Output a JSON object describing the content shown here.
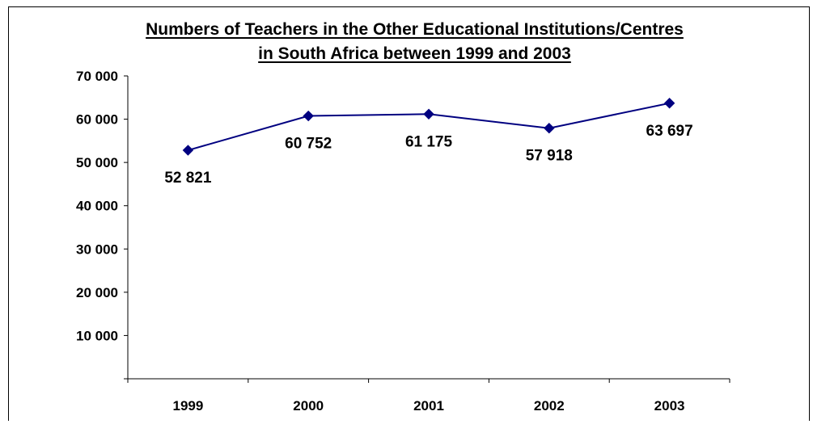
{
  "chart_data": {
    "type": "line",
    "title_line1": "Numbers of Teachers in the Other Educational Institutions/Centres",
    "title_line2": "in South Africa between 1999 and 2003",
    "xlabel": "",
    "ylabel": "",
    "categories": [
      "1999",
      "2000",
      "2001",
      "2002",
      "2003"
    ],
    "series": [
      {
        "values": [
          52821,
          60752,
          61175,
          57918,
          63697
        ]
      }
    ],
    "data_labels": [
      "52 821",
      "60 752",
      "61 175",
      "57 918",
      "63 697"
    ],
    "y_ticks": [
      {
        "value": 10000,
        "label": "10 000"
      },
      {
        "value": 20000,
        "label": "20 000"
      },
      {
        "value": 30000,
        "label": "30 000"
      },
      {
        "value": 40000,
        "label": "40 000"
      },
      {
        "value": 50000,
        "label": "50 000"
      },
      {
        "value": 60000,
        "label": "60 000"
      },
      {
        "value": 70000,
        "label": "70 000"
      }
    ],
    "ylim": [
      0,
      70000
    ],
    "grid": false,
    "legend": "none",
    "line_color": "#000080"
  }
}
